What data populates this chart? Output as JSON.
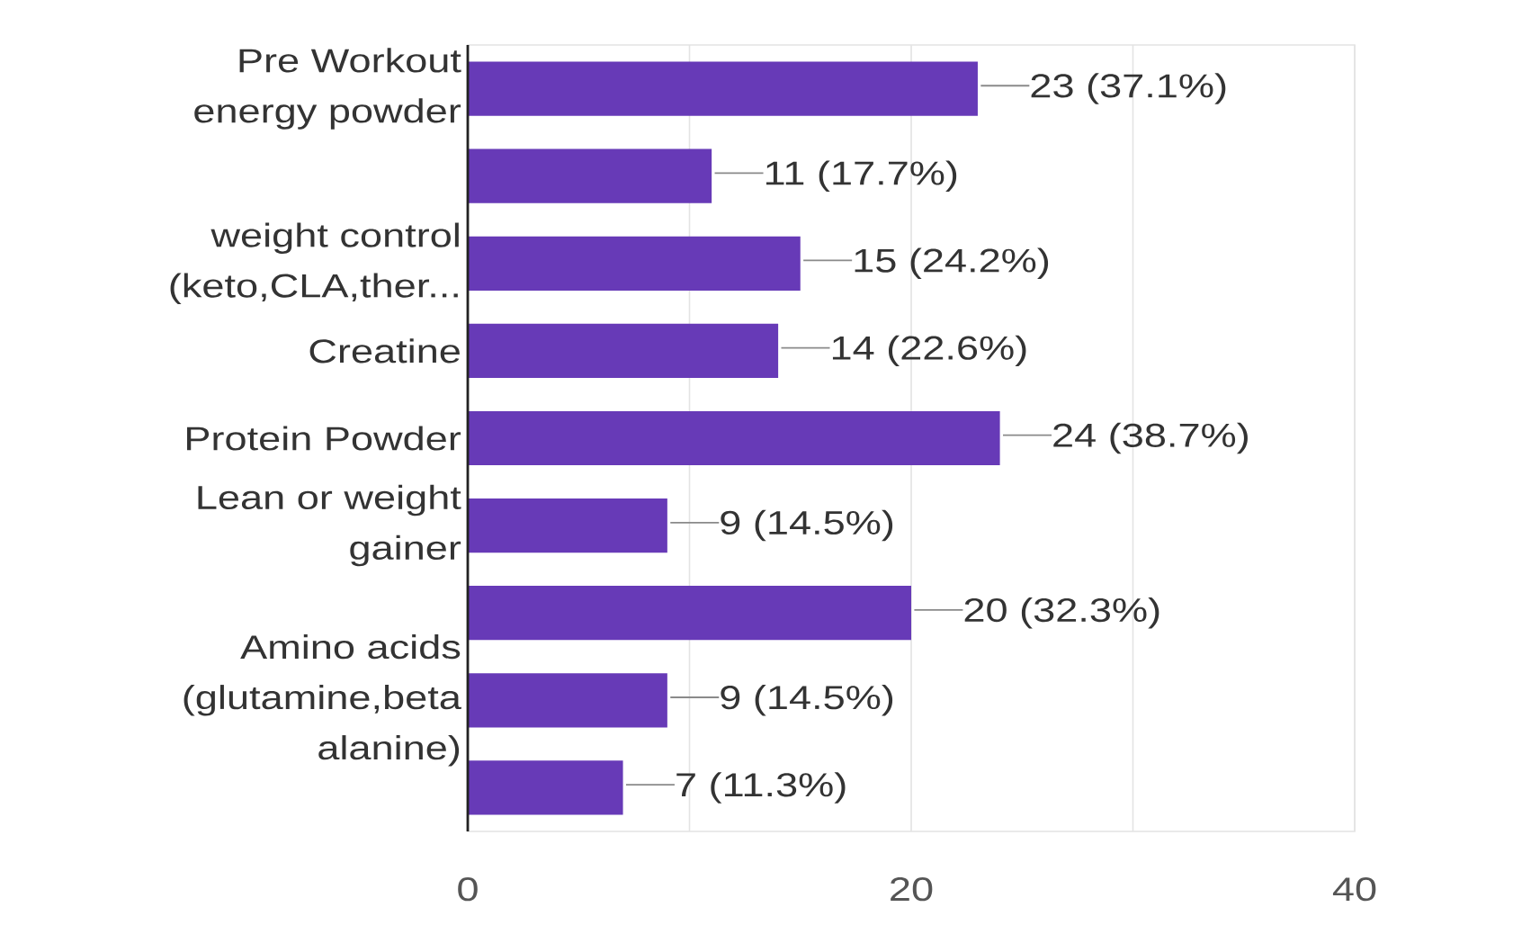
{
  "chart_data": {
    "type": "bar",
    "orientation": "horizontal",
    "categories": [
      "Pre Workout energy powder",
      null,
      "weight control (keto,CLA,ther...",
      "Creatine",
      "Protein Powder",
      "Lean or weight gainer",
      null,
      "Amino acids (glutamine,beta alanine)",
      null
    ],
    "values": [
      23,
      11,
      15,
      14,
      24,
      9,
      20,
      9,
      7
    ],
    "value_labels": [
      "23 (37.1%)",
      "11 (17.7%)",
      "15 (24.2%)",
      "14 (22.6%)",
      "24 (38.7%)",
      "9 (14.5%)",
      "20 (32.3%)",
      "9 (14.5%)",
      "7 (11.3%)"
    ],
    "color": "#673ab7",
    "xlim": [
      0,
      40
    ],
    "xticks": [
      0,
      {
        "value": 10,
        "label": null
      },
      20,
      {
        "value": 30,
        "label": null
      },
      40
    ],
    "grid": "x"
  }
}
